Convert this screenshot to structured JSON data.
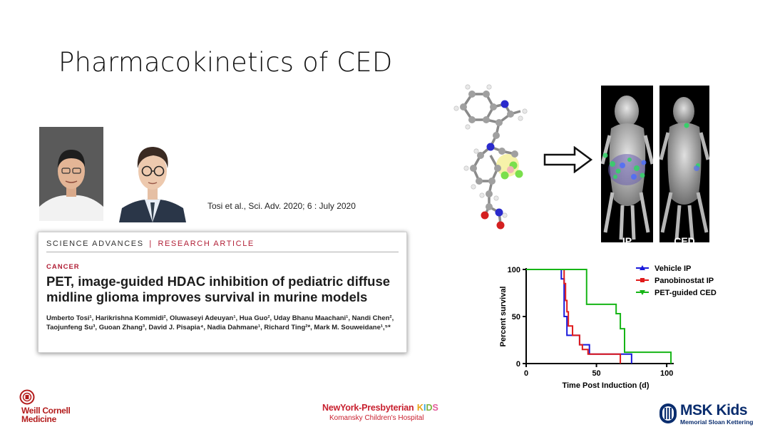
{
  "slide": {
    "title": "Pharmacokinetics of CED"
  },
  "citation": "Tosi et al., Sci. Adv. 2020; 6 : July 2020",
  "paper": {
    "journal": "SCIENCE ADVANCES",
    "separator": "|",
    "article_type": "RESEARCH ARTICLE",
    "section": "CANCER",
    "title": "PET, image-guided HDAC inhibition of pediatric diffuse midline glioma improves survival in murine models",
    "authors": "Umberto Tosi¹, Harikrishna Kommidi², Oluwaseyi Adeuyan¹, Hua Guo², Uday Bhanu Maachani¹, Nandi Chen², Taojunfeng Su³, Guoan Zhang³, David J. Pisapia⁴, Nadia Dahmane¹, Richard Ting²*, Mark M. Souweidane¹,⁵*"
  },
  "imaging": {
    "panel_left_label": "IP",
    "panel_right_label": "CED"
  },
  "chart_data": {
    "type": "line",
    "subtype": "kaplan-meier",
    "xlabel": "Time Post Induction (d)",
    "ylabel": "Percent survival",
    "xlim": [
      0,
      105
    ],
    "ylim": [
      0,
      100
    ],
    "xticks": [
      "0",
      "50",
      "100"
    ],
    "yticks": [
      "0",
      "50",
      "100"
    ],
    "legend_position": "top-right",
    "series": [
      {
        "name": "Vehicle IP",
        "color": "#1a1adb",
        "marker": "triangle-up",
        "x": [
          0,
          23,
          25,
          27,
          29,
          31,
          38,
          45,
          60,
          75
        ],
        "y": [
          100,
          100,
          90,
          50,
          30,
          30,
          20,
          10,
          10,
          0
        ]
      },
      {
        "name": "Panobinostat IP",
        "color": "#e01a1a",
        "marker": "square",
        "x": [
          0,
          26,
          27,
          28,
          29,
          30,
          33,
          38,
          40,
          44,
          67
        ],
        "y": [
          100,
          100,
          85,
          67,
          55,
          40,
          30,
          20,
          15,
          10,
          0
        ]
      },
      {
        "name": "PET-guided CED",
        "color": "#16b516",
        "marker": "triangle-down",
        "x": [
          0,
          40,
          43,
          63,
          64,
          67,
          70,
          103
        ],
        "y": [
          100,
          100,
          63,
          63,
          53,
          37,
          12,
          0
        ]
      }
    ]
  },
  "logos": {
    "wcm_line1": "Weill Cornell",
    "wcm_line2": "Medicine",
    "nyp_main": "NewYork-Presbyterian",
    "nyp_kids": "KIDS",
    "nyp_sub": "Komansky Children's Hospital",
    "msk_main": "MSK Kids",
    "msk_sub": "Memorial Sloan Kettering"
  },
  "colors": {
    "accent_red": "#b11f36",
    "msk_blue": "#0a2d6e",
    "wcm_red": "#b31b1b"
  }
}
